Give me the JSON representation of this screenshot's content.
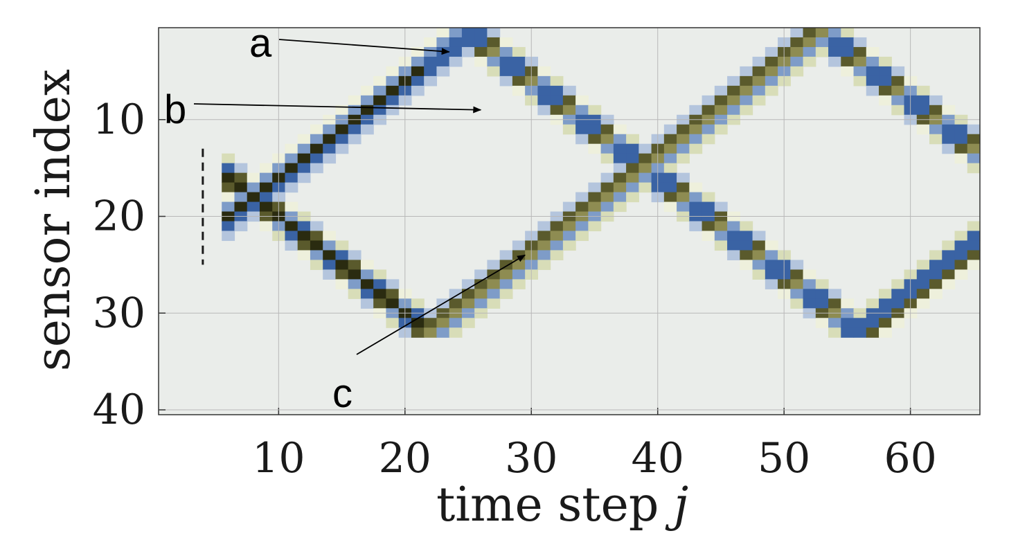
{
  "chart_data": {
    "type": "heatmap",
    "xlabel": "time step",
    "xlabel_var": "j",
    "ylabel": "sensor index",
    "x_range": [
      1,
      65
    ],
    "y_range": [
      1,
      40
    ],
    "y_reversed": true,
    "x_ticks": [
      10,
      20,
      30,
      40,
      50,
      60
    ],
    "y_ticks": [
      10,
      20,
      30,
      40
    ],
    "grid": true,
    "colormap": [
      "#eaedea",
      "#eef0dc",
      "#d8ddb8",
      "#b4c5dd",
      "#7e9cc8",
      "#3a63a4",
      "#8e8c52",
      "#5a5a2c",
      "#2a2b10",
      "#1c2c64"
    ],
    "field": {
      "description_source": "two diagonal wavefronts emanating from a source near sensor 18 at time step 8, reflecting at sensors 1 and 40",
      "source_time": 8,
      "source_sensor": 18,
      "period": 32,
      "reflect_top": 1,
      "reflect_bottom": 40
    },
    "source_marker": {
      "type": "dashed-line",
      "x": 4,
      "y_from": 13,
      "y_to": 25
    },
    "annotations": [
      {
        "label": "a",
        "arrow_tip": [
          23.5,
          3
        ]
      },
      {
        "label": "b",
        "arrow_tip": [
          26,
          9
        ]
      },
      {
        "label": "c",
        "arrow_tip": [
          29.5,
          24
        ]
      }
    ]
  }
}
